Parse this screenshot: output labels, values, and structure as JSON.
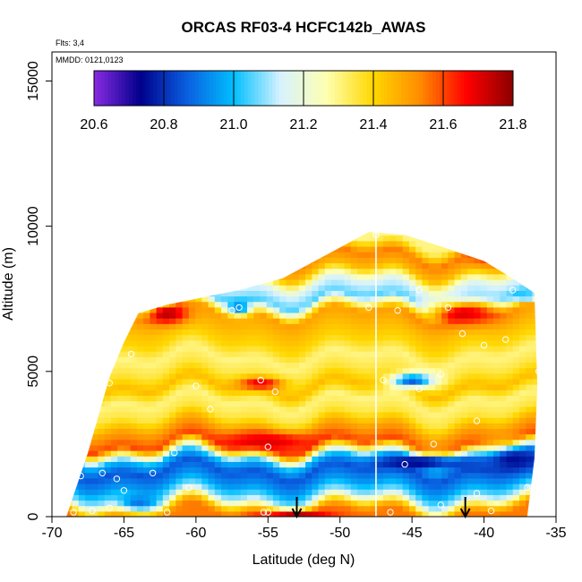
{
  "chart_data": {
    "type": "heatmap",
    "title": "ORCAS RF03-4 HCFC142b_AWAS",
    "flights_label": "Flts: 3,4",
    "date_label": "MMDD: 0121,0123",
    "xlabel": "Latitude (deg N)",
    "ylabel": "Altitude (m)",
    "xlim": [
      -70,
      -35
    ],
    "ylim": [
      0,
      16000
    ],
    "x_ticks": [
      -70,
      -65,
      -60,
      -55,
      -50,
      -45,
      -40,
      -35
    ],
    "y_ticks": [
      0,
      5000,
      10000,
      15000
    ],
    "colorbar": {
      "min": 20.6,
      "max": 21.8,
      "ticks": [
        20.6,
        20.8,
        21.0,
        21.2,
        21.4,
        21.6,
        21.8
      ],
      "colors": [
        "#8a2be2",
        "#00008b",
        "#0a5fe0",
        "#00bfff",
        "#d6f2ff",
        "#ffffb0",
        "#ffd700",
        "#ff8c00",
        "#ff0000",
        "#8b0000"
      ]
    },
    "curtain_outline": {
      "lat": [
        -69,
        -67.5,
        -66,
        -65,
        -64,
        -62,
        -60,
        -57,
        -54,
        -51,
        -48,
        -45.5,
        -43,
        -40,
        -38,
        -36.5,
        -36.3,
        -36.5,
        -37,
        -69
      ],
      "alt": [
        0,
        2200,
        4800,
        6000,
        7000,
        7300,
        7500,
        7800,
        8200,
        9000,
        9800,
        9700,
        9300,
        8800,
        8200,
        7700,
        4500,
        2000,
        0,
        0
      ]
    },
    "bands": [
      {
        "alt": 100,
        "value": 21.55
      },
      {
        "alt": 300,
        "value": 21.45
      },
      {
        "alt": 700,
        "value": 21.1
      },
      {
        "alt": 1100,
        "value": 20.95
      },
      {
        "alt": 1600,
        "value": 20.85
      },
      {
        "alt": 2000,
        "value": 21.0
      },
      {
        "alt": 2500,
        "value": 21.6
      },
      {
        "alt": 3000,
        "value": 21.5
      },
      {
        "alt": 3500,
        "value": 21.35
      },
      {
        "alt": 4000,
        "value": 21.3
      },
      {
        "alt": 4500,
        "value": 21.45
      },
      {
        "alt": 5000,
        "value": 21.35
      },
      {
        "alt": 5500,
        "value": 21.3
      },
      {
        "alt": 6000,
        "value": 21.4
      },
      {
        "alt": 6500,
        "value": 21.45
      },
      {
        "alt": 7000,
        "value": 21.5
      },
      {
        "alt": 7500,
        "value": 21.05
      },
      {
        "alt": 8000,
        "value": 21.15
      },
      {
        "alt": 8500,
        "value": 21.45
      },
      {
        "alt": 9000,
        "value": 21.55
      },
      {
        "alt": 9500,
        "value": 21.3
      }
    ],
    "blobs": [
      {
        "lat": -55,
        "alt": 2600,
        "value": 21.7,
        "rlat": 3.5,
        "ralt": 350
      },
      {
        "lat": -62,
        "alt": 7000,
        "value": 21.75,
        "rlat": 1.5,
        "ralt": 350
      },
      {
        "lat": -41.5,
        "alt": 7000,
        "value": 21.7,
        "rlat": 2.5,
        "ralt": 400
      },
      {
        "lat": -44,
        "alt": 1900,
        "value": 20.7,
        "rlat": 3.0,
        "ralt": 250
      },
      {
        "lat": -38,
        "alt": 2000,
        "value": 20.75,
        "rlat": 2.0,
        "ralt": 450
      },
      {
        "lat": -45,
        "alt": 4700,
        "value": 20.85,
        "rlat": 1.5,
        "ralt": 250
      },
      {
        "lat": -57,
        "alt": 7200,
        "value": 20.9,
        "rlat": 0.8,
        "ralt": 250
      },
      {
        "lat": -55.5,
        "alt": 4600,
        "value": 21.7,
        "rlat": 1.5,
        "ralt": 200
      },
      {
        "lat": -53,
        "alt": 100,
        "value": 21.75,
        "rlat": 2.5,
        "ralt": 150
      },
      {
        "lat": -39,
        "alt": 9000,
        "value": 21.65,
        "rlat": 2.0,
        "ralt": 300
      },
      {
        "lat": -64,
        "alt": 500,
        "value": 20.9,
        "rlat": 1.5,
        "ralt": 300
      },
      {
        "lat": -37,
        "alt": 7600,
        "value": 20.95,
        "rlat": 1.0,
        "ralt": 150
      }
    ],
    "sample_points": [
      {
        "lat": -68.5,
        "alt": 150
      },
      {
        "lat": -67.2,
        "alt": 200
      },
      {
        "lat": -66,
        "alt": 300
      },
      {
        "lat": -65,
        "alt": 900
      },
      {
        "lat": -68,
        "alt": 1400
      },
      {
        "lat": -66.5,
        "alt": 1500
      },
      {
        "lat": -65.5,
        "alt": 1300
      },
      {
        "lat": -62,
        "alt": 150
      },
      {
        "lat": -60.5,
        "alt": 1000
      },
      {
        "lat": -59,
        "alt": 3700
      },
      {
        "lat": -60,
        "alt": 4500
      },
      {
        "lat": -57.5,
        "alt": 7100
      },
      {
        "lat": -57,
        "alt": 7200
      },
      {
        "lat": -64.5,
        "alt": 5600
      },
      {
        "lat": -66,
        "alt": 4600
      },
      {
        "lat": -55,
        "alt": 2400
      },
      {
        "lat": -54.5,
        "alt": 4300
      },
      {
        "lat": -55.5,
        "alt": 4700
      },
      {
        "lat": -55,
        "alt": 150
      },
      {
        "lat": -55.3,
        "alt": 150
      },
      {
        "lat": -48,
        "alt": 7200
      },
      {
        "lat": -46,
        "alt": 7100
      },
      {
        "lat": -44.5,
        "alt": 7800
      },
      {
        "lat": -42.5,
        "alt": 7200
      },
      {
        "lat": -41.5,
        "alt": 6300
      },
      {
        "lat": -40,
        "alt": 5900
      },
      {
        "lat": -38.5,
        "alt": 6100
      },
      {
        "lat": -38,
        "alt": 7800
      },
      {
        "lat": -36,
        "alt": 7600
      },
      {
        "lat": -40.5,
        "alt": 3300
      },
      {
        "lat": -43.5,
        "alt": 2500
      },
      {
        "lat": -44.5,
        "alt": 4400
      },
      {
        "lat": -47,
        "alt": 4700
      },
      {
        "lat": -45.5,
        "alt": 1800
      },
      {
        "lat": -46.5,
        "alt": 150
      },
      {
        "lat": -43,
        "alt": 400
      },
      {
        "lat": -40.5,
        "alt": 800
      },
      {
        "lat": -39.5,
        "alt": 200
      },
      {
        "lat": -36.5,
        "alt": 150
      },
      {
        "lat": -36,
        "alt": 2300
      },
      {
        "lat": -37,
        "alt": 1000
      },
      {
        "lat": -47.5,
        "alt": 9700
      },
      {
        "lat": -43,
        "alt": 4900
      },
      {
        "lat": -36.2,
        "alt": 5000
      },
      {
        "lat": -61.5,
        "alt": 2200
      },
      {
        "lat": -63,
        "alt": 1500
      }
    ],
    "gap_lat": -47.5,
    "arrows": [
      {
        "lat": -53
      },
      {
        "lat": -41.3
      }
    ]
  }
}
